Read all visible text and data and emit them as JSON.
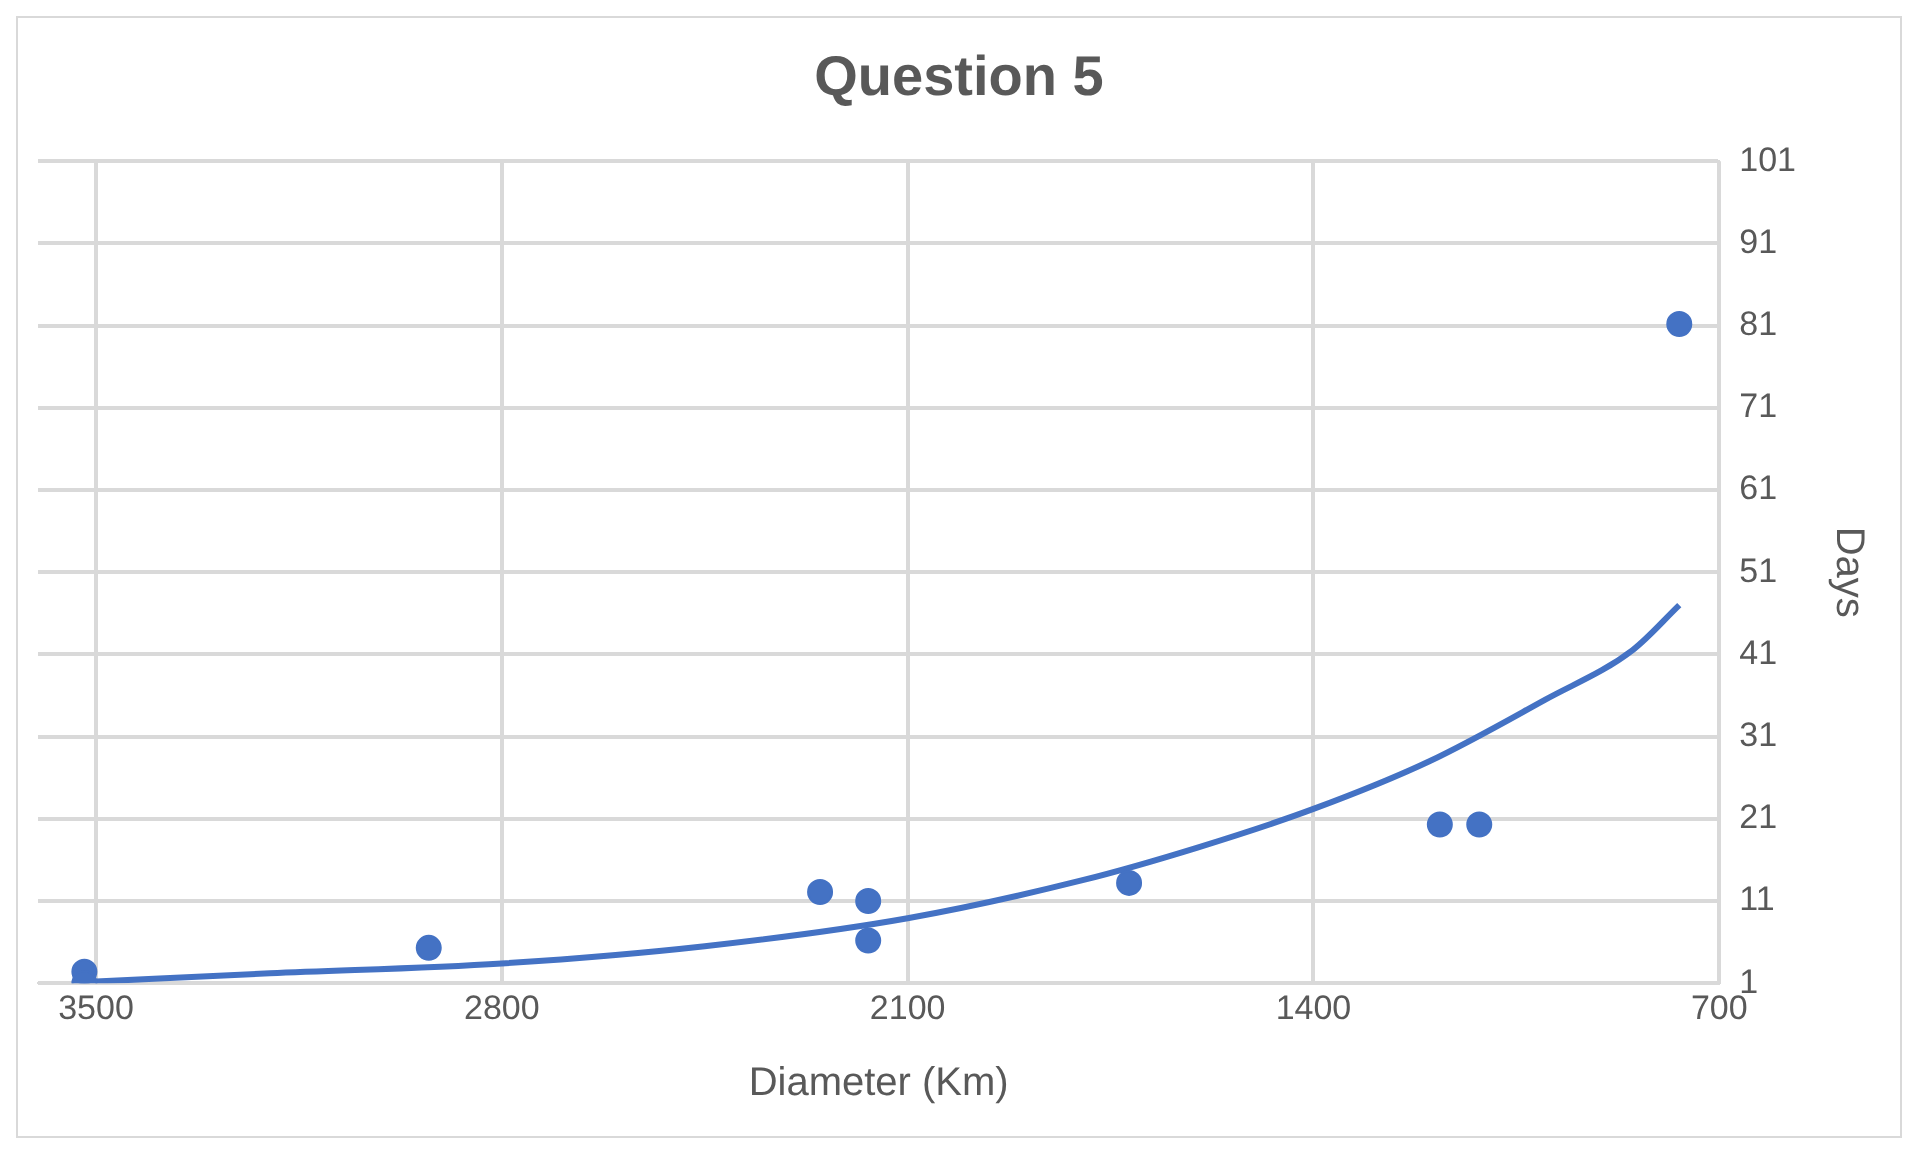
{
  "chart_data": {
    "type": "scatter",
    "title": "Question 5",
    "xlabel": "Diameter (Km)",
    "ylabel": "Days",
    "xlim": [
      3600,
      700
    ],
    "xticks": [
      3500,
      2800,
      2100,
      1400,
      700
    ],
    "ylim": [
      1,
      101
    ],
    "yticks": [
      1,
      11,
      21,
      31,
      41,
      51,
      61,
      71,
      81,
      91,
      101
    ],
    "grid": true,
    "legend": false,
    "marker": "circle",
    "series": [
      {
        "color": "#4472c4",
        "x": [
          3520,
          3520,
          2926,
          2251,
          2168,
          2168,
          1718,
          1182,
          1114,
          769
        ],
        "values": [
          2.4,
          1,
          5.3,
          12.1,
          11,
          6.2,
          13.2,
          20.3,
          20.3,
          81.2
        ]
      },
      {
        "type": "line",
        "color": "#4472c4",
        "marker": "none",
        "line_style": "solid",
        "x": [
          3500,
          3200,
          2800,
          2450,
          2100,
          1800,
          1600,
          1400,
          1200,
          1000,
          850,
          769
        ],
        "values": [
          1.2,
          2.2,
          3.4,
          5.5,
          8.9,
          13.5,
          17.5,
          22.2,
          28,
          35.5,
          41.5,
          47
        ]
      }
    ]
  }
}
